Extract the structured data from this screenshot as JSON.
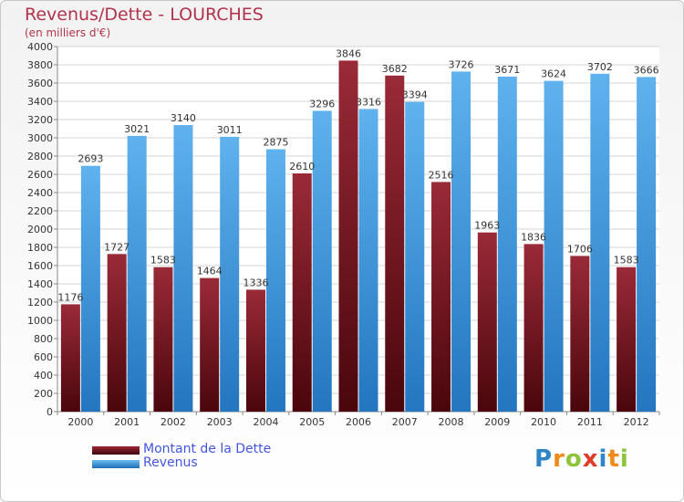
{
  "title": "Revenus/Dette - LOURCHES",
  "subtitle": "(en milliers d'€)",
  "logo": {
    "letters": [
      "P",
      "r",
      "o",
      "x",
      "i",
      "t",
      "i"
    ],
    "colors": [
      "#2e86c9",
      "#f08a1a",
      "#8cc43c",
      "#e23c2a",
      "#2e86c9",
      "#f08a1a",
      "#8cc43c"
    ]
  },
  "chart_data": {
    "type": "bar",
    "title": "Revenus/Dette - LOURCHES",
    "subtitle": "(en milliers d'€)",
    "categories": [
      "2000",
      "2001",
      "2002",
      "2003",
      "2004",
      "2005",
      "2006",
      "2007",
      "2008",
      "2009",
      "2010",
      "2011",
      "2012"
    ],
    "series": [
      {
        "name": "Montant de la Dette",
        "color": "#7a1420",
        "values": [
          1176,
          1727,
          1583,
          1464,
          1336,
          2610,
          3846,
          3682,
          2516,
          1963,
          1836,
          1706,
          1583
        ],
        "labels": [
          "1176",
          "1727",
          "1583",
          "1464",
          "1336",
          "2610",
          "3846",
          "3682",
          "2516",
          "1963",
          "1836",
          "1706",
          "1583"
        ]
      },
      {
        "name": "Revenus",
        "color": "#3d9be0",
        "values": [
          2693,
          3021,
          3140,
          3011,
          2875,
          3296,
          3316,
          3394,
          3726,
          3671,
          3624,
          3702,
          3666
        ],
        "labels": [
          "2693",
          "3021",
          "3140",
          "3011",
          "2875",
          "3296",
          "3316",
          "3394",
          "3726",
          "3671",
          "3624",
          "3702",
          "3666"
        ]
      }
    ],
    "ylim": [
      0,
      4000
    ],
    "yticks": [
      0,
      200,
      400,
      600,
      800,
      1000,
      1200,
      1400,
      1600,
      1800,
      2000,
      2200,
      2400,
      2600,
      2800,
      3000,
      3200,
      3400,
      3600,
      3800,
      4000
    ],
    "grid": true,
    "legend": "bottom-left"
  }
}
